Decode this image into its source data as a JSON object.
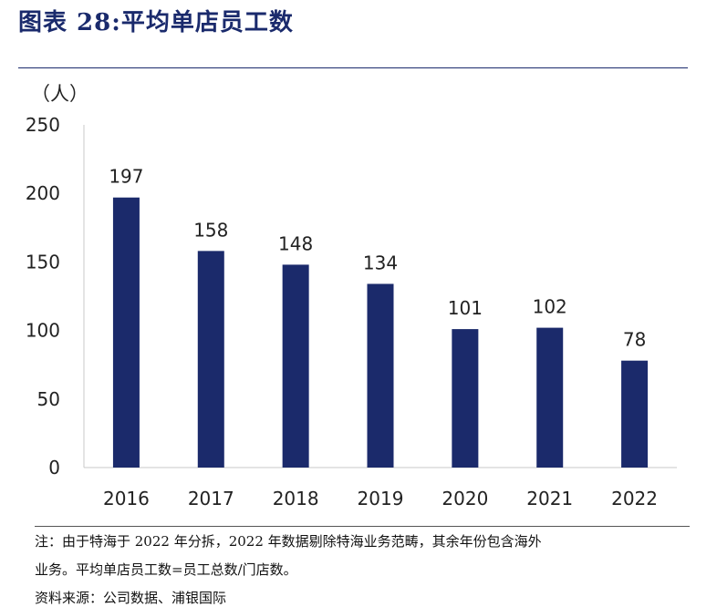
{
  "title": "图表 28:平均单店员工数",
  "notes": {
    "line1": "注：由于特海于 2022 年分拆，2022 年数据剔除特海业务范畴，其余年份包含海外",
    "line2": "业务。平均单店员工数=员工总数/门店数。",
    "source": "资料来源：公司数据、浦银国际"
  },
  "colors": {
    "bar": "#1b2a6b",
    "title": "#1a2a6c",
    "axis": "#c8c8c8"
  },
  "chart_data": {
    "type": "bar",
    "title": "",
    "ylabel": "（人）",
    "xlabel": "",
    "ylim": [
      0,
      250
    ],
    "yticks": [
      0,
      50,
      100,
      150,
      200,
      250
    ],
    "grid": false,
    "categories": [
      "2016",
      "2017",
      "2018",
      "2019",
      "2020",
      "2021",
      "2022"
    ],
    "values": [
      197,
      158,
      148,
      134,
      101,
      102,
      78
    ],
    "data_labels": [
      "197",
      "158",
      "148",
      "134",
      "101",
      "102",
      "78"
    ]
  }
}
